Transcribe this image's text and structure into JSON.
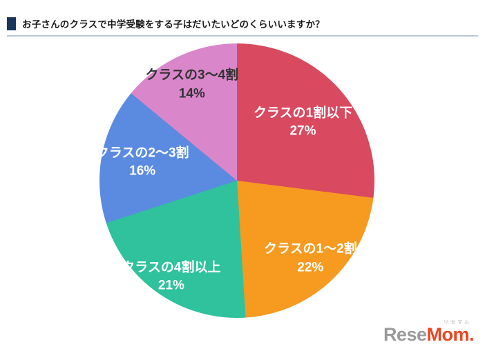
{
  "header": {
    "title": "お子さんのクラスで中学受験をする子はだいたいどのくらいいますか？"
  },
  "chart_data": {
    "type": "pie",
    "title": "お子さんのクラスで中学受験をする子はだいたいどのくらいいますか？",
    "unit": "%",
    "direction": "clockwise",
    "start_angle_deg": 0,
    "legend": "none",
    "segments": [
      {
        "label": "クラスの1割以下",
        "value": 27,
        "color": "#d9495f",
        "text_color": "#ffffff",
        "label_r": 0.64
      },
      {
        "label": "クラスの1〜2割",
        "value": 22,
        "color": "#f69a20",
        "text_color": "#ffffff",
        "label_r": 0.78
      },
      {
        "label": "クラスの4割以上",
        "value": 21,
        "color": "#2fc29c",
        "text_color": "#ffffff",
        "label_r": 0.85
      },
      {
        "label": "クラスの2〜3割",
        "value": 16,
        "color": "#5a8be0",
        "text_color": "#ffffff",
        "label_r": 0.7
      },
      {
        "label": "クラスの3〜4割",
        "value": 14,
        "color": "#da86ca",
        "text_color": "#333333",
        "label_r": 0.77
      }
    ]
  },
  "logo": {
    "kana": "リセマム",
    "part1": "Rese",
    "part2": "Mom",
    "dot": "."
  }
}
